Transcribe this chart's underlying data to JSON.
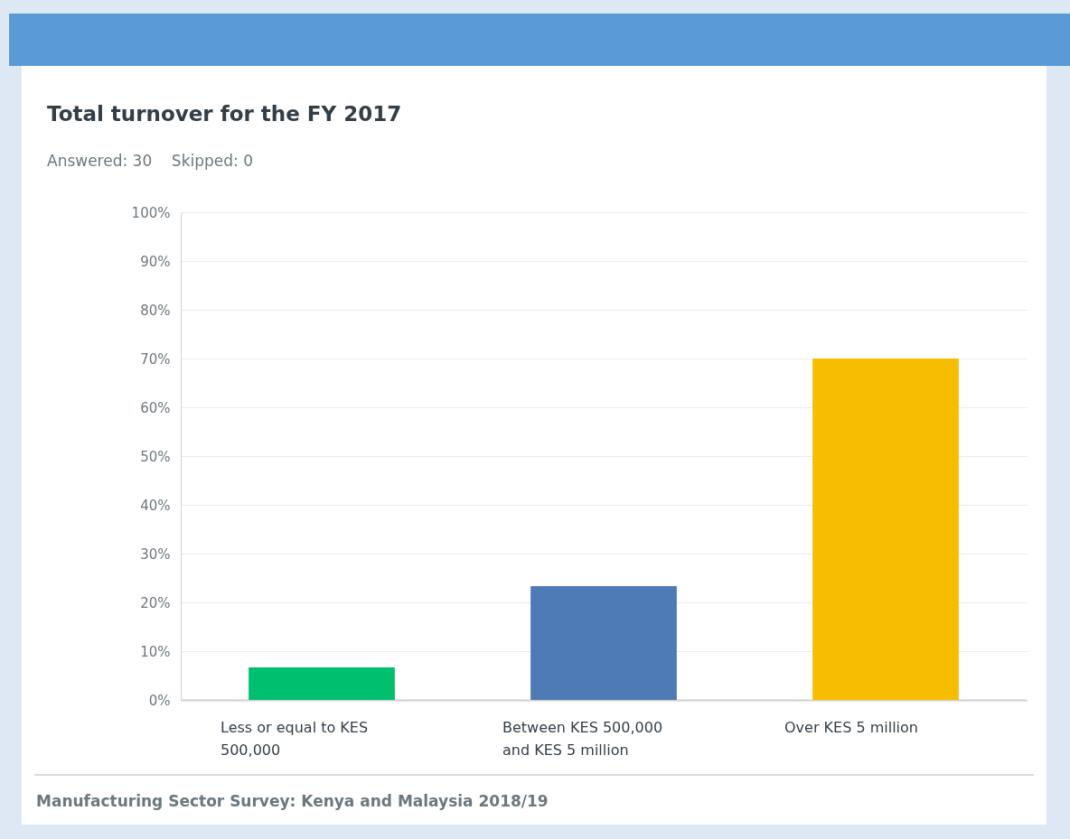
{
  "chart_data": {
    "type": "bar",
    "title": "Total turnover for the FY 2017",
    "subtitle": "Answered: 30    Skipped: 0",
    "categories": [
      "Less or equal to KES 500,000",
      "Between KES 500,000 and KES 5 million",
      "Over KES 5 million"
    ],
    "values": [
      6.67,
      23.33,
      70
    ],
    "colors": [
      "#00bf6f",
      "#4e7ab5",
      "#f7bd00"
    ],
    "ylim": [
      0,
      100
    ],
    "yticks": [
      {
        "value": 0,
        "label": "0%"
      },
      {
        "value": 10,
        "label": "10%"
      },
      {
        "value": 20,
        "label": "20%"
      },
      {
        "value": 30,
        "label": "30%"
      },
      {
        "value": 40,
        "label": "40%"
      },
      {
        "value": 50,
        "label": "50%"
      },
      {
        "value": 60,
        "label": "60%"
      },
      {
        "value": 70,
        "label": "70%"
      },
      {
        "value": 80,
        "label": "80%"
      },
      {
        "value": 90,
        "label": "90%"
      },
      {
        "value": 100,
        "label": "100%"
      }
    ],
    "grid": "y",
    "annotations": [
      "Manufacturing Sector Survey: Kenya and Malaysia 2018/19"
    ]
  }
}
